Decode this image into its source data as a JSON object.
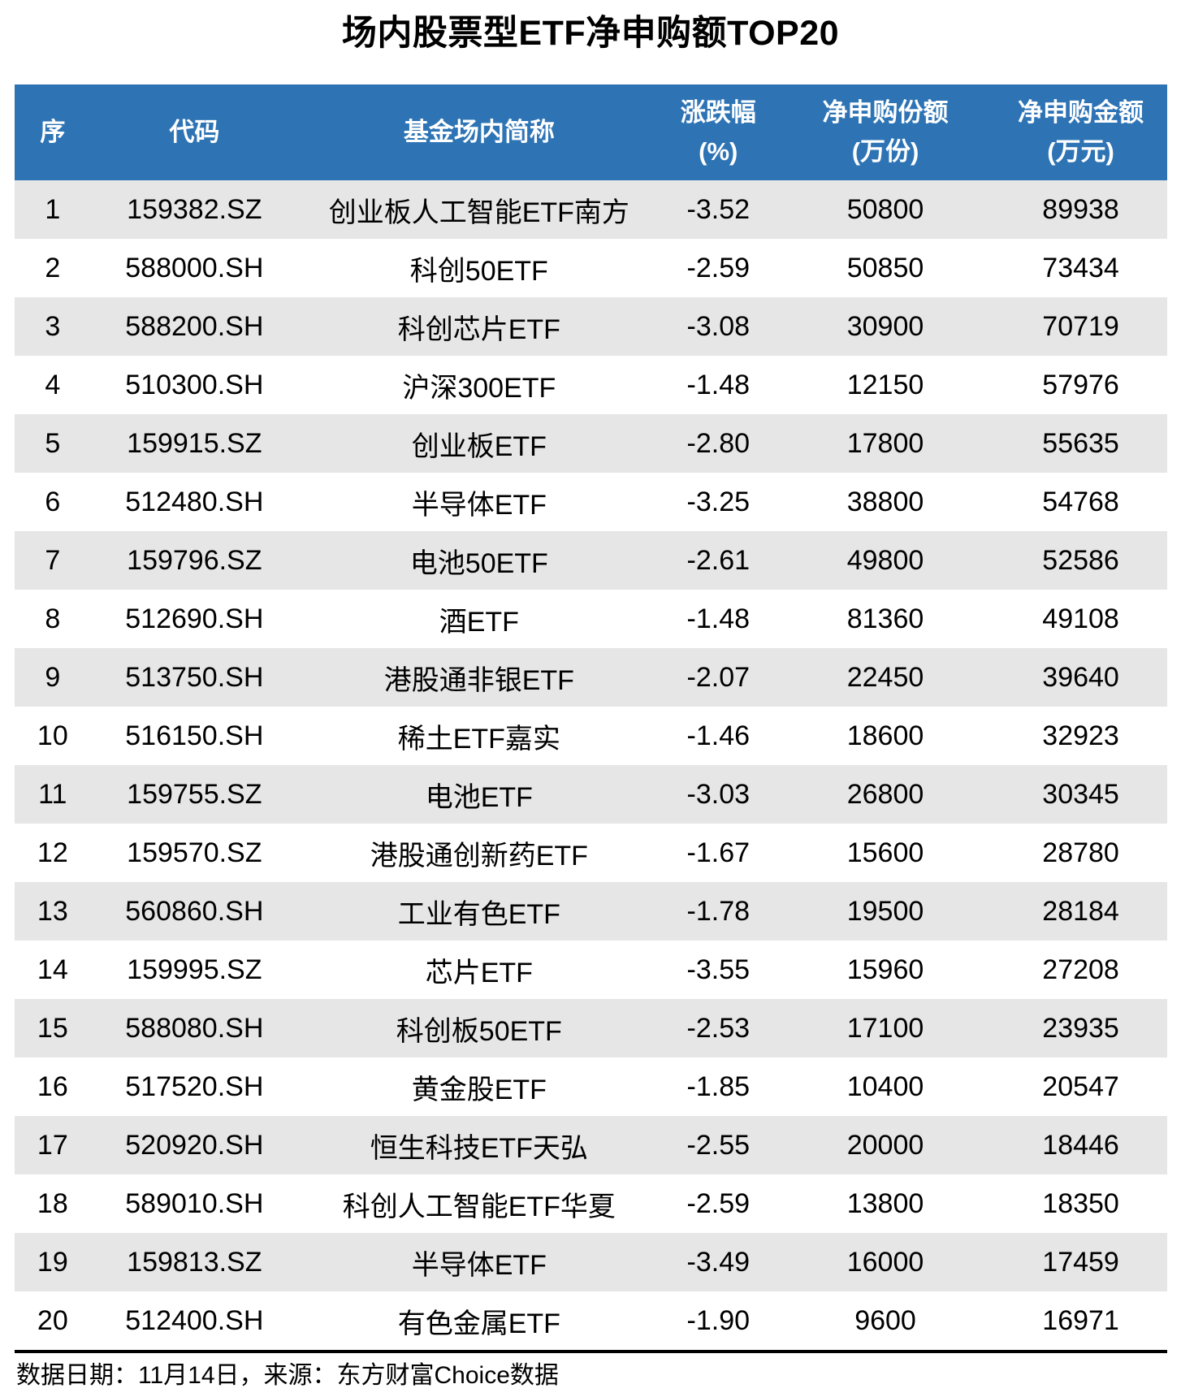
{
  "chart_data": {
    "type": "table",
    "title": "场内股票型ETF净申购额TOP20",
    "columns": [
      {
        "label": "序",
        "sub": ""
      },
      {
        "label": "代码",
        "sub": ""
      },
      {
        "label": "基金场内简称",
        "sub": ""
      },
      {
        "label": "涨跌幅",
        "sub": "(%)"
      },
      {
        "label": "净申购份额",
        "sub": "(万份)"
      },
      {
        "label": "净申购金额",
        "sub": "(万元)"
      }
    ],
    "rows": [
      [
        "1",
        "159382.SZ",
        "创业板人工智能ETF南方",
        "-3.52",
        "50800",
        "89938"
      ],
      [
        "2",
        "588000.SH",
        "科创50ETF",
        "-2.59",
        "50850",
        "73434"
      ],
      [
        "3",
        "588200.SH",
        "科创芯片ETF",
        "-3.08",
        "30900",
        "70719"
      ],
      [
        "4",
        "510300.SH",
        "沪深300ETF",
        "-1.48",
        "12150",
        "57976"
      ],
      [
        "5",
        "159915.SZ",
        "创业板ETF",
        "-2.80",
        "17800",
        "55635"
      ],
      [
        "6",
        "512480.SH",
        "半导体ETF",
        "-3.25",
        "38800",
        "54768"
      ],
      [
        "7",
        "159796.SZ",
        "电池50ETF",
        "-2.61",
        "49800",
        "52586"
      ],
      [
        "8",
        "512690.SH",
        "酒ETF",
        "-1.48",
        "81360",
        "49108"
      ],
      [
        "9",
        "513750.SH",
        "港股通非银ETF",
        "-2.07",
        "22450",
        "39640"
      ],
      [
        "10",
        "516150.SH",
        "稀土ETF嘉实",
        "-1.46",
        "18600",
        "32923"
      ],
      [
        "11",
        "159755.SZ",
        "电池ETF",
        "-3.03",
        "26800",
        "30345"
      ],
      [
        "12",
        "159570.SZ",
        "港股通创新药ETF",
        "-1.67",
        "15600",
        "28780"
      ],
      [
        "13",
        "560860.SH",
        "工业有色ETF",
        "-1.78",
        "19500",
        "28184"
      ],
      [
        "14",
        "159995.SZ",
        "芯片ETF",
        "-3.55",
        "15960",
        "27208"
      ],
      [
        "15",
        "588080.SH",
        "科创板50ETF",
        "-2.53",
        "17100",
        "23935"
      ],
      [
        "16",
        "517520.SH",
        "黄金股ETF",
        "-1.85",
        "10400",
        "20547"
      ],
      [
        "17",
        "520920.SH",
        "恒生科技ETF天弘",
        "-2.55",
        "20000",
        "18446"
      ],
      [
        "18",
        "589010.SH",
        "科创人工智能ETF华夏",
        "-2.59",
        "13800",
        "18350"
      ],
      [
        "19",
        "159813.SZ",
        "半导体ETF",
        "-3.49",
        "16000",
        "17459"
      ],
      [
        "20",
        "512400.SH",
        "有色金属ETF",
        "-1.90",
        "9600",
        "16971"
      ]
    ],
    "source_note": "数据日期：11月14日，来源：东方财富Choice数据",
    "layout_hints": {
      "striped_rows": "odd rows shaded",
      "header_position": "top"
    },
    "colors": {
      "header_bg": "#2E74B5",
      "header_text": "#FFFFFF",
      "row_stripe": "#E6E6E6",
      "body_text": "#000000",
      "bottom_rule": "#000000"
    }
  }
}
